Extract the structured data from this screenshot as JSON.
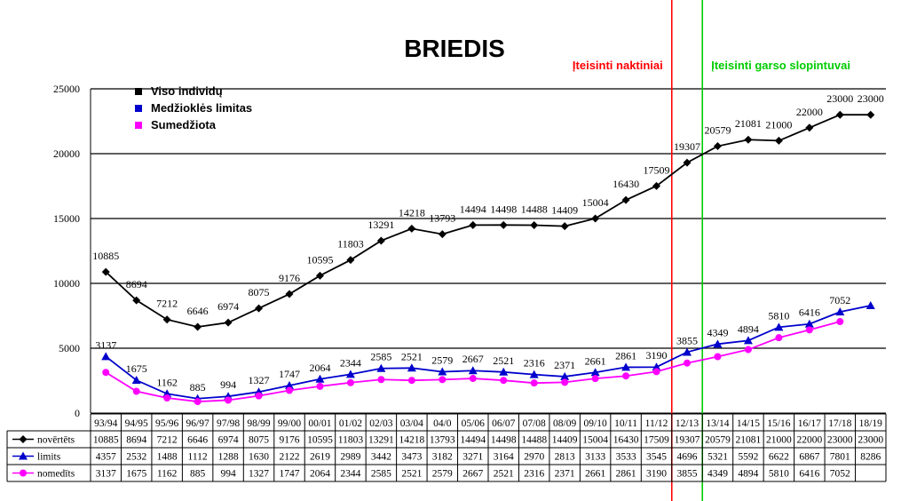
{
  "chart_data": {
    "type": "line",
    "title": "BRIEDIS",
    "ylim": [
      0,
      25000
    ],
    "y_ticks": [
      "0",
      "5000",
      "10000",
      "15000",
      "20000",
      "25000"
    ],
    "grid": "horizontal",
    "categories": [
      "93/94",
      "94/95",
      "95/96",
      "96/97",
      "97/98",
      "98/99",
      "99/00",
      "00/01",
      "01/02",
      "02/03",
      "03/04",
      "04/0",
      "05/06",
      "06/07",
      "07/08",
      "08/09",
      "09/10",
      "10/11",
      "11/12",
      "12/13",
      "13/14",
      "14/15",
      "15/16",
      "16/17",
      "17/18",
      "18/19"
    ],
    "series": [
      {
        "name": "novertets",
        "color": "#000000",
        "marker": "diamond",
        "values": [
          10885,
          8694,
          7212,
          6646,
          6974,
          8075,
          9176,
          10595,
          11803,
          13291,
          14218,
          13793,
          14494,
          14498,
          14488,
          14409,
          15004,
          16430,
          17509,
          19307,
          20579,
          21081,
          21000,
          22000,
          23000,
          23000
        ]
      },
      {
        "name": "limits",
        "color": "#0000cc",
        "marker": "triangle",
        "values": [
          4357,
          2532,
          1488,
          1112,
          1288,
          1630,
          2122,
          2619,
          2989,
          3442,
          3473,
          3182,
          3271,
          3164,
          2970,
          2813,
          3133,
          3533,
          3545,
          4696,
          5321,
          5592,
          6622,
          6867,
          7801,
          8286
        ]
      },
      {
        "name": "nomedits",
        "color": "#ff00ff",
        "marker": "circle",
        "values": [
          3137,
          1675,
          1162,
          885,
          994,
          1327,
          1747,
          2064,
          2344,
          2585,
          2521,
          2579,
          2667,
          2521,
          2316,
          2371,
          2661,
          2861,
          3190,
          3855,
          4349,
          4894,
          5810,
          6416,
          7052,
          null
        ]
      }
    ],
    "legend": {
      "position": "top-left",
      "items": [
        {
          "label": "Viso individų",
          "color": "#000000"
        },
        {
          "label": "Medžioklės limitas",
          "color": "#0000cc"
        },
        {
          "label": "Sumedžiota",
          "color": "#ff00ff"
        }
      ]
    },
    "data_labels": {
      "novertets": [
        "10885",
        "8694",
        "7212",
        "6646",
        "6974",
        "8075",
        "9176",
        "10595",
        "11803",
        "13291",
        "14218",
        "13793",
        "14494",
        "14498",
        "14488",
        "14409",
        "15004",
        "16430",
        "17509",
        "19307",
        "20579",
        "21081",
        "21000",
        "22000",
        "23000",
        "23000"
      ],
      "nomedits": [
        "3137",
        "1675",
        "1162",
        "885",
        "994",
        "1327",
        "1747",
        "2064",
        "2344",
        "2585",
        "2521",
        "2579",
        "2667",
        "2521",
        "2316",
        "2371",
        "2661",
        "2861",
        "3190",
        "3855",
        "4349",
        "4894",
        "5810",
        "6416",
        "7052",
        ""
      ]
    },
    "annotations": [
      {
        "text": "Įteisinti naktiniai",
        "color": "#ff0000",
        "at_category": "12/13",
        "position": "left"
      },
      {
        "text": "Įteisinti garso slopintuvai",
        "color": "#00cc00",
        "at_category": "13/14",
        "position": "right"
      }
    ],
    "table": {
      "row_labels": [
        "novērtēts",
        "limits",
        "nomedīts"
      ]
    }
  }
}
